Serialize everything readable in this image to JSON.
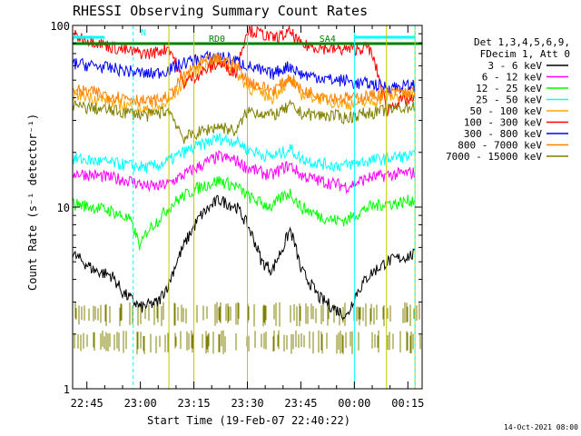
{
  "chart_data": {
    "type": "line",
    "title": "RHESSI Observing Summary Count Rates",
    "xlabel": "Start Time (19-Feb-07 22:40:22)",
    "ylabel": "Count Rate (s⁻¹ detector⁻¹)",
    "yscale": "log",
    "ylim": [
      1,
      100
    ],
    "xlim_minutes": [
      -11,
      87
    ],
    "x_tick_minutes": [
      -7,
      8,
      23,
      38,
      53,
      68,
      83
    ],
    "x_tick_labels": [
      "22:45",
      "23:00",
      "23:15",
      "23:30",
      "23:45",
      "00:00",
      "00:15"
    ],
    "y_ticks": [
      1,
      10,
      100
    ],
    "y_tick_labels": [
      "1",
      "10",
      "100"
    ],
    "legend_header": [
      "Det 1,3,4,5,6,9,",
      "FDecim 1, Att 0"
    ],
    "legend_position": "right",
    "footer_date": "14-Oct-2021 08:00",
    "flags": [
      {
        "label": "N",
        "color": "#00ffff",
        "start": -11,
        "end": -2
      },
      {
        "label": "",
        "color": "#00ffff",
        "start": 68,
        "end": 85
      },
      {
        "label": "RD0",
        "color": "#008000",
        "start": -11,
        "end": 87
      },
      {
        "label": "SA4",
        "color": "#008000",
        "start": 20,
        "end": 22
      }
    ],
    "vlines_solid": [
      -11,
      16,
      23,
      38,
      68,
      77,
      85
    ],
    "vlines_dashed": [
      6,
      85
    ],
    "series": [
      {
        "name": "3 - 6 keV",
        "color": "#000000",
        "x": [
          -11,
          -5,
          0,
          3,
          8,
          13,
          16,
          20,
          25,
          30,
          35,
          38,
          42,
          45,
          48,
          50,
          53,
          58,
          62,
          66,
          68,
          72,
          77,
          80,
          85
        ],
        "y": [
          5.5,
          4.5,
          4.2,
          3.4,
          2.8,
          3.0,
          3.8,
          6,
          9,
          11,
          10,
          8,
          5,
          4.5,
          6,
          7.5,
          4.5,
          3.2,
          2.8,
          2.5,
          3.2,
          4.2,
          5.0,
          5.2,
          5.5
        ]
      },
      {
        "name": "6 - 12 keV",
        "color": "#ff00ff",
        "x": [
          -11,
          -5,
          0,
          5,
          10,
          13,
          16,
          20,
          25,
          30,
          35,
          38,
          42,
          45,
          48,
          50,
          53,
          58,
          62,
          66,
          68,
          72,
          77,
          80,
          85
        ],
        "y": [
          15.5,
          15,
          14.5,
          14,
          13,
          13,
          13.5,
          15,
          17,
          19,
          18,
          16.5,
          15.5,
          15,
          16.5,
          17,
          15,
          14,
          13.5,
          13,
          13.5,
          14.5,
          15,
          15.2,
          15.5
        ]
      },
      {
        "name": "12 - 25 keV",
        "color": "#00ff00",
        "x": [
          -11,
          -5,
          0,
          5,
          8,
          10,
          13,
          16,
          20,
          25,
          30,
          35,
          38,
          42,
          45,
          48,
          50,
          53,
          58,
          62,
          66,
          68,
          72,
          77,
          80,
          85
        ],
        "y": [
          10.5,
          10,
          9.5,
          8.5,
          6,
          7.5,
          8.5,
          10,
          11.5,
          13,
          14,
          13,
          11.5,
          10.5,
          10,
          11.5,
          12,
          10,
          9,
          8.5,
          8.5,
          9,
          10,
          10.5,
          10.5,
          11
        ]
      },
      {
        "name": "25 - 50 keV",
        "color": "#00ffff",
        "x": [
          -11,
          -5,
          0,
          5,
          10,
          13,
          16,
          20,
          25,
          30,
          35,
          38,
          42,
          45,
          48,
          50,
          53,
          58,
          62,
          66,
          68,
          72,
          77,
          80,
          85
        ],
        "y": [
          18.5,
          18,
          17.5,
          17,
          16.5,
          17,
          18,
          20,
          22,
          24,
          23,
          21,
          19.5,
          19,
          20,
          21,
          18.5,
          17.5,
          17,
          17,
          17.5,
          18,
          18.5,
          19,
          19
        ]
      },
      {
        "name": "50 - 100 keV",
        "color": "#ffa500",
        "x": [
          -11,
          -5,
          0,
          5,
          10,
          13,
          16,
          20,
          25,
          30,
          35,
          38,
          42,
          45,
          48,
          50,
          53,
          58,
          62,
          66,
          68,
          72,
          77,
          80,
          85
        ],
        "y": [
          42,
          40,
          38,
          36,
          34,
          35,
          38,
          48,
          60,
          64,
          55,
          46,
          42,
          40,
          46,
          50,
          42,
          40,
          38,
          37,
          37,
          38,
          40,
          41,
          41
        ]
      },
      {
        "name": "100 - 300 keV",
        "color": "#ff0000",
        "x": [
          -11,
          -5,
          0,
          5,
          10,
          13,
          16,
          20,
          25,
          30,
          35,
          38,
          42,
          45,
          48,
          50,
          53,
          58,
          62,
          66,
          68,
          72,
          77,
          80,
          85
        ],
        "y": [
          88,
          82,
          76,
          72,
          70,
          72,
          76,
          48,
          55,
          62,
          55,
          95,
          90,
          85,
          88,
          92,
          78,
          76,
          74,
          74,
          74,
          76,
          34,
          38,
          39
        ]
      },
      {
        "name": "300 - 800 keV",
        "color": "#0000ff",
        "x": [
          -11,
          -5,
          0,
          5,
          10,
          13,
          16,
          20,
          25,
          30,
          35,
          38,
          42,
          45,
          48,
          50,
          53,
          58,
          62,
          66,
          68,
          72,
          77,
          80,
          85
        ],
        "y": [
          62,
          60,
          58,
          56,
          54,
          55,
          57,
          62,
          66,
          68,
          64,
          60,
          56,
          54,
          58,
          60,
          54,
          52,
          50,
          50,
          48,
          48,
          46,
          46,
          47
        ]
      },
      {
        "name": "800 - 7000 keV",
        "color": "#ff8000",
        "x": [
          -11,
          -5,
          0,
          5,
          10,
          13,
          16,
          20,
          25,
          30,
          35,
          38,
          42,
          45,
          48,
          50,
          53,
          58,
          62,
          66,
          68,
          72,
          77,
          80,
          85
        ],
        "y": [
          44,
          43,
          41,
          40,
          38,
          39,
          41,
          52,
          62,
          66,
          60,
          50,
          46,
          44,
          48,
          52,
          44,
          42,
          40,
          40,
          40,
          41,
          42,
          43,
          43
        ]
      },
      {
        "name": "7000 - 15000 keV",
        "color": "#808000",
        "x": [
          -11,
          -5,
          0,
          5,
          10,
          13,
          16,
          20,
          25,
          30,
          35,
          38,
          42,
          45,
          48,
          50,
          53,
          58,
          62,
          66,
          68,
          72,
          77,
          80,
          85
        ],
        "y": [
          36,
          35,
          34,
          33,
          32,
          33,
          34,
          24,
          26,
          28,
          26,
          34,
          33,
          32,
          34,
          36,
          33,
          32,
          32,
          31,
          32,
          33,
          34,
          35,
          36
        ]
      }
    ],
    "noise_bands": [
      {
        "color": "#808000",
        "ymin": 1.55,
        "ymax": 2.1
      },
      {
        "color": "#808000",
        "ymin": 2.2,
        "ymax": 3.0
      }
    ]
  }
}
